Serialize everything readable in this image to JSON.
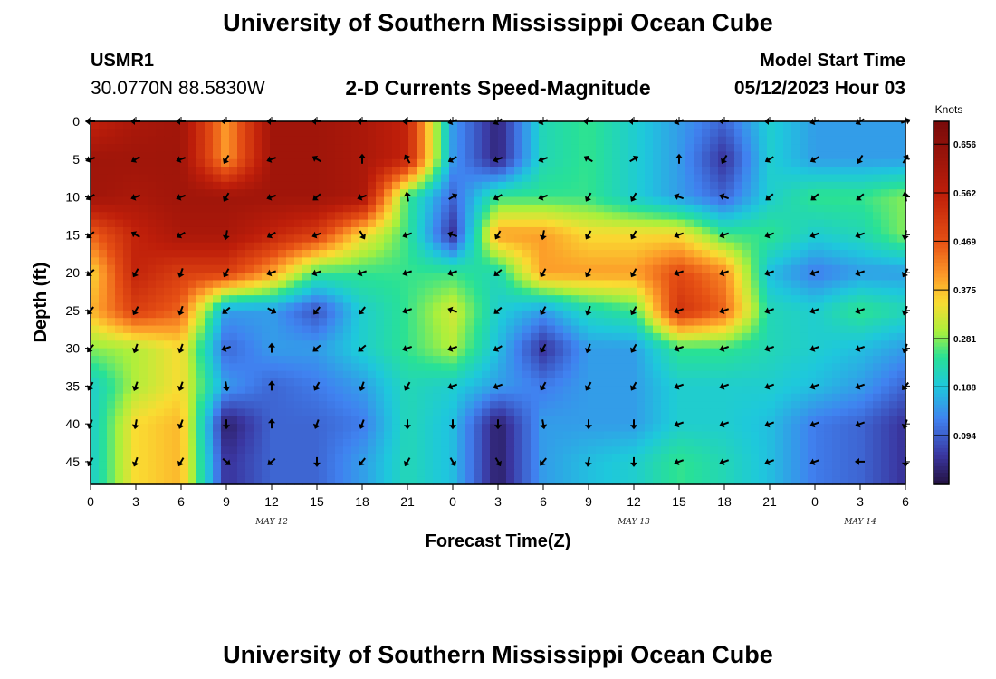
{
  "header": {
    "title": "University of Southern Mississippi Ocean Cube",
    "station_id": "USMR1",
    "coordinates": "30.0770N  88.5830W",
    "subtitle": "2-D Currents Speed-Magnitude",
    "model_label": "Model Start Time",
    "model_time": "05/12/2023 Hour 03"
  },
  "footer": {
    "title": "University of Southern Mississippi Ocean Cube"
  },
  "chart_data": {
    "type": "heatmap",
    "xlabel": "Forecast Time(Z)",
    "ylabel": "Depth (ft)",
    "x_tick_labels": [
      "0",
      "3",
      "6",
      "9",
      "12",
      "15",
      "18",
      "21",
      "0",
      "3",
      "6",
      "9",
      "12",
      "15",
      "18",
      "21",
      "0",
      "3",
      "6"
    ],
    "date_labels": [
      {
        "text": "MAY 12",
        "at_tick": 4
      },
      {
        "text": "MAY 13",
        "at_tick": 12
      },
      {
        "text": "MAY 14",
        "at_tick": 17
      }
    ],
    "y_ticks": [
      0,
      5,
      10,
      15,
      20,
      25,
      30,
      35,
      40,
      45
    ],
    "ylim": [
      0,
      48
    ],
    "x_range_hours": [
      0,
      54
    ],
    "colorbar": {
      "unit": "Knots",
      "range": [
        0.0,
        0.7
      ],
      "tick_values": [
        0.656,
        0.562,
        0.469,
        0.375,
        0.281,
        0.188,
        0.094
      ],
      "tick_labels": [
        "0.656",
        "0.562",
        "0.469",
        "0.375",
        "0.281",
        "0.188",
        "0.094"
      ]
    },
    "grid_hours": [
      0,
      3,
      6,
      9,
      12,
      15,
      18,
      21,
      24,
      27,
      30,
      33,
      36,
      39,
      42,
      45,
      48,
      51,
      54
    ],
    "grid_depths": [
      0,
      5,
      10,
      15,
      20,
      25,
      30,
      35,
      40,
      45,
      48
    ],
    "speed_knots": [
      [
        0.55,
        0.6,
        0.62,
        0.4,
        0.62,
        0.62,
        0.6,
        0.55,
        0.15,
        0.03,
        0.22,
        0.25,
        0.2,
        0.15,
        0.1,
        0.2,
        0.15,
        0.15,
        0.15
      ],
      [
        0.62,
        0.62,
        0.62,
        0.4,
        0.62,
        0.62,
        0.6,
        0.55,
        0.15,
        0.03,
        0.22,
        0.25,
        0.2,
        0.15,
        0.05,
        0.2,
        0.15,
        0.15,
        0.15
      ],
      [
        0.62,
        0.6,
        0.62,
        0.62,
        0.62,
        0.62,
        0.6,
        0.25,
        0.1,
        0.25,
        0.25,
        0.25,
        0.2,
        0.15,
        0.1,
        0.2,
        0.25,
        0.25,
        0.28
      ],
      [
        0.45,
        0.55,
        0.6,
        0.6,
        0.55,
        0.5,
        0.35,
        0.25,
        0.05,
        0.4,
        0.4,
        0.35,
        0.35,
        0.35,
        0.25,
        0.25,
        0.2,
        0.22,
        0.28
      ],
      [
        0.35,
        0.55,
        0.5,
        0.5,
        0.4,
        0.25,
        0.25,
        0.25,
        0.25,
        0.22,
        0.4,
        0.4,
        0.4,
        0.48,
        0.42,
        0.18,
        0.12,
        0.15,
        0.15
      ],
      [
        0.38,
        0.5,
        0.45,
        0.15,
        0.15,
        0.08,
        0.2,
        0.25,
        0.32,
        0.2,
        0.15,
        0.22,
        0.25,
        0.52,
        0.45,
        0.22,
        0.2,
        0.25,
        0.22
      ],
      [
        0.28,
        0.3,
        0.35,
        0.1,
        0.15,
        0.15,
        0.2,
        0.25,
        0.3,
        0.18,
        0.05,
        0.15,
        0.15,
        0.25,
        0.25,
        0.22,
        0.2,
        0.18,
        0.15
      ],
      [
        0.2,
        0.3,
        0.35,
        0.15,
        0.1,
        0.12,
        0.15,
        0.22,
        0.2,
        0.15,
        0.12,
        0.15,
        0.15,
        0.2,
        0.2,
        0.2,
        0.18,
        0.15,
        0.1
      ],
      [
        0.2,
        0.35,
        0.38,
        0.02,
        0.1,
        0.1,
        0.12,
        0.22,
        0.18,
        0.02,
        0.15,
        0.15,
        0.15,
        0.2,
        0.2,
        0.18,
        0.12,
        0.1,
        0.05
      ],
      [
        0.2,
        0.35,
        0.38,
        0.05,
        0.1,
        0.1,
        0.15,
        0.22,
        0.18,
        0.02,
        0.15,
        0.18,
        0.2,
        0.25,
        0.22,
        0.18,
        0.12,
        0.1,
        0.05
      ],
      [
        0.2,
        0.35,
        0.38,
        0.05,
        0.1,
        0.1,
        0.15,
        0.22,
        0.18,
        0.02,
        0.15,
        0.18,
        0.2,
        0.25,
        0.22,
        0.18,
        0.12,
        0.1,
        0.05
      ]
    ],
    "arrow_hours": [
      0,
      3,
      6,
      9,
      12,
      15,
      18,
      21,
      24,
      27,
      30,
      33,
      36,
      39,
      42,
      45,
      48,
      51,
      54
    ],
    "arrow_depths": [
      0,
      5,
      10,
      15,
      20,
      25,
      30,
      35,
      40,
      45
    ],
    "arrow_directions_deg": [
      [
        180,
        180,
        180,
        180,
        180,
        180,
        180,
        180,
        200,
        210,
        200,
        180,
        180,
        200,
        180,
        180,
        200,
        210,
        20
      ],
      [
        200,
        210,
        200,
        240,
        200,
        150,
        90,
        120,
        210,
        200,
        200,
        150,
        30,
        90,
        240,
        210,
        210,
        240,
        60
      ],
      [
        210,
        200,
        200,
        240,
        200,
        220,
        200,
        100,
        30,
        210,
        200,
        240,
        240,
        160,
        160,
        220,
        220,
        220,
        100
      ],
      [
        220,
        150,
        210,
        260,
        210,
        200,
        300,
        200,
        160,
        240,
        260,
        240,
        240,
        200,
        200,
        200,
        200,
        200,
        260
      ],
      [
        220,
        240,
        250,
        240,
        200,
        200,
        200,
        200,
        200,
        220,
        240,
        240,
        240,
        200,
        200,
        200,
        200,
        200,
        240
      ],
      [
        230,
        240,
        250,
        220,
        330,
        230,
        230,
        200,
        160,
        220,
        240,
        250,
        240,
        200,
        200,
        200,
        200,
        200,
        250
      ],
      [
        230,
        250,
        250,
        200,
        90,
        220,
        220,
        200,
        200,
        210,
        240,
        250,
        240,
        200,
        200,
        200,
        200,
        200,
        250
      ],
      [
        240,
        250,
        250,
        280,
        90,
        240,
        250,
        240,
        200,
        200,
        240,
        240,
        240,
        200,
        200,
        200,
        200,
        200,
        230
      ],
      [
        250,
        260,
        250,
        270,
        90,
        250,
        250,
        270,
        270,
        270,
        280,
        270,
        270,
        200,
        200,
        200,
        200,
        200,
        250
      ],
      [
        240,
        250,
        240,
        320,
        220,
        270,
        230,
        240,
        300,
        300,
        230,
        260,
        270,
        200,
        200,
        200,
        200,
        180,
        270
      ]
    ]
  }
}
